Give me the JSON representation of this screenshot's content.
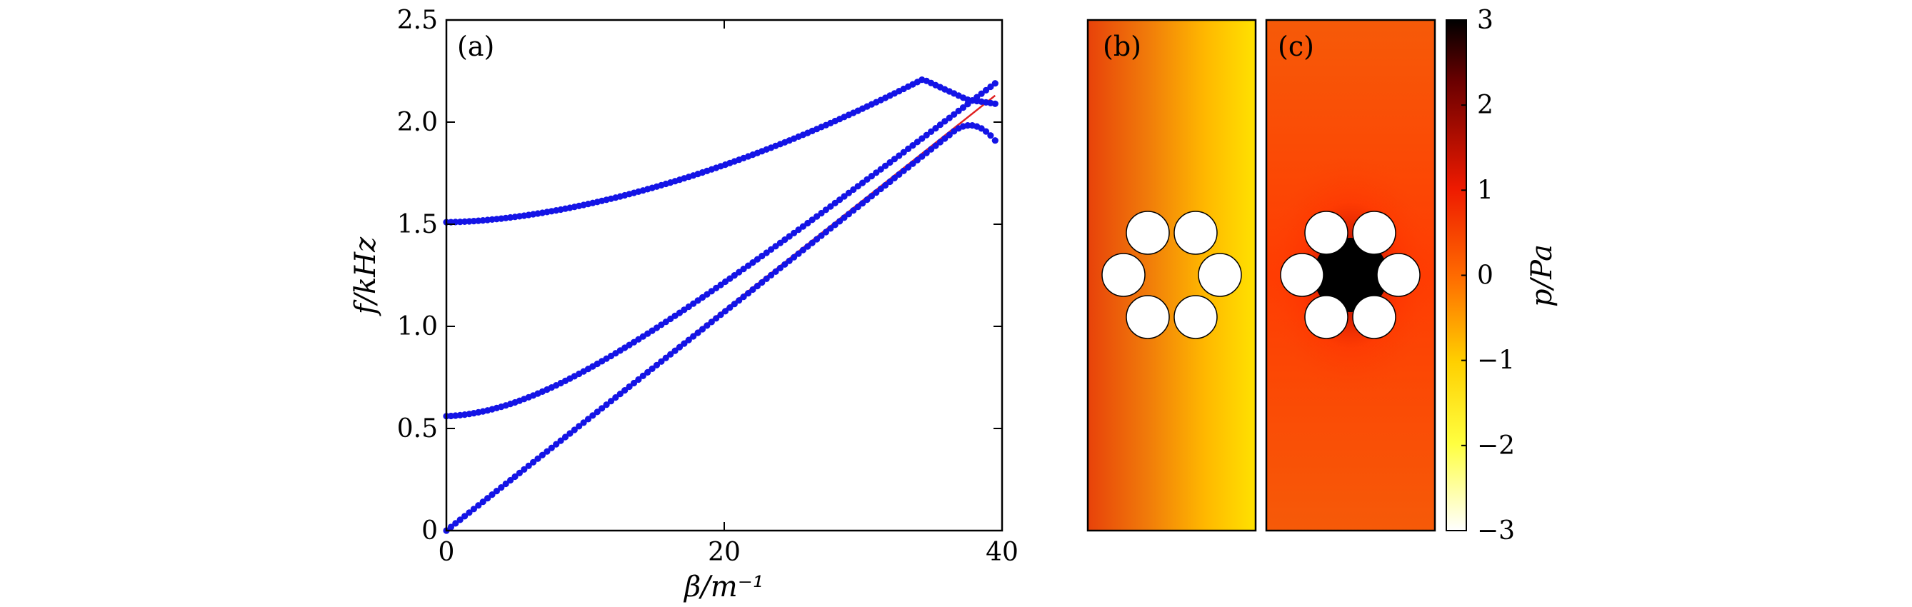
{
  "chart_data": [
    {
      "type": "scatter",
      "panel_label": "(a)",
      "xlabel": "β/m⁻¹",
      "ylabel": "f/kHz",
      "xlim": [
        0,
        40
      ],
      "ylim": [
        0,
        2.5
      ],
      "xticks": [
        0,
        20,
        40
      ],
      "xtick_labels": [
        "0",
        "20",
        "40"
      ],
      "yticks": [
        0,
        0.5,
        1.0,
        1.5,
        2.0,
        2.5
      ],
      "ytick_labels": [
        "0",
        "0.5",
        "1.0",
        "1.5",
        "2.0",
        "2.5"
      ],
      "grid": false,
      "series_color": "#1414e6",
      "line_color": "#e02020",
      "series": [
        {
          "kind": "dots",
          "x_end": 39.5,
          "y_end": 1.91,
          "knee_x": 36.5,
          "slope": 0.05
        },
        {
          "kind": "dots",
          "f0": 0.56,
          "x_end": 39.5,
          "y_end": 2.19
        },
        {
          "kind": "dots",
          "f0": 1.51,
          "x_end": 34.3,
          "y_end": 2.21,
          "after": [
            [
              37.5,
              2.11
            ],
            [
              39.5,
              2.09
            ]
          ]
        },
        {
          "kind": "line",
          "x": [
            0,
            39.5
          ],
          "y": [
            0,
            2.13
          ]
        }
      ]
    },
    {
      "type": "heatmap",
      "panel_label": "(b)",
      "description_colormap": "hot_r"
    },
    {
      "type": "heatmap",
      "panel_label": "(c)"
    },
    {
      "type": "colorbar",
      "label": "p/Pa",
      "range": [
        -3,
        3
      ],
      "ticks": [
        3,
        2,
        1,
        0,
        -1,
        -2,
        -3
      ],
      "tick_labels": [
        "3",
        "2",
        "1",
        "0",
        "−1",
        "−2",
        "−3"
      ]
    }
  ]
}
